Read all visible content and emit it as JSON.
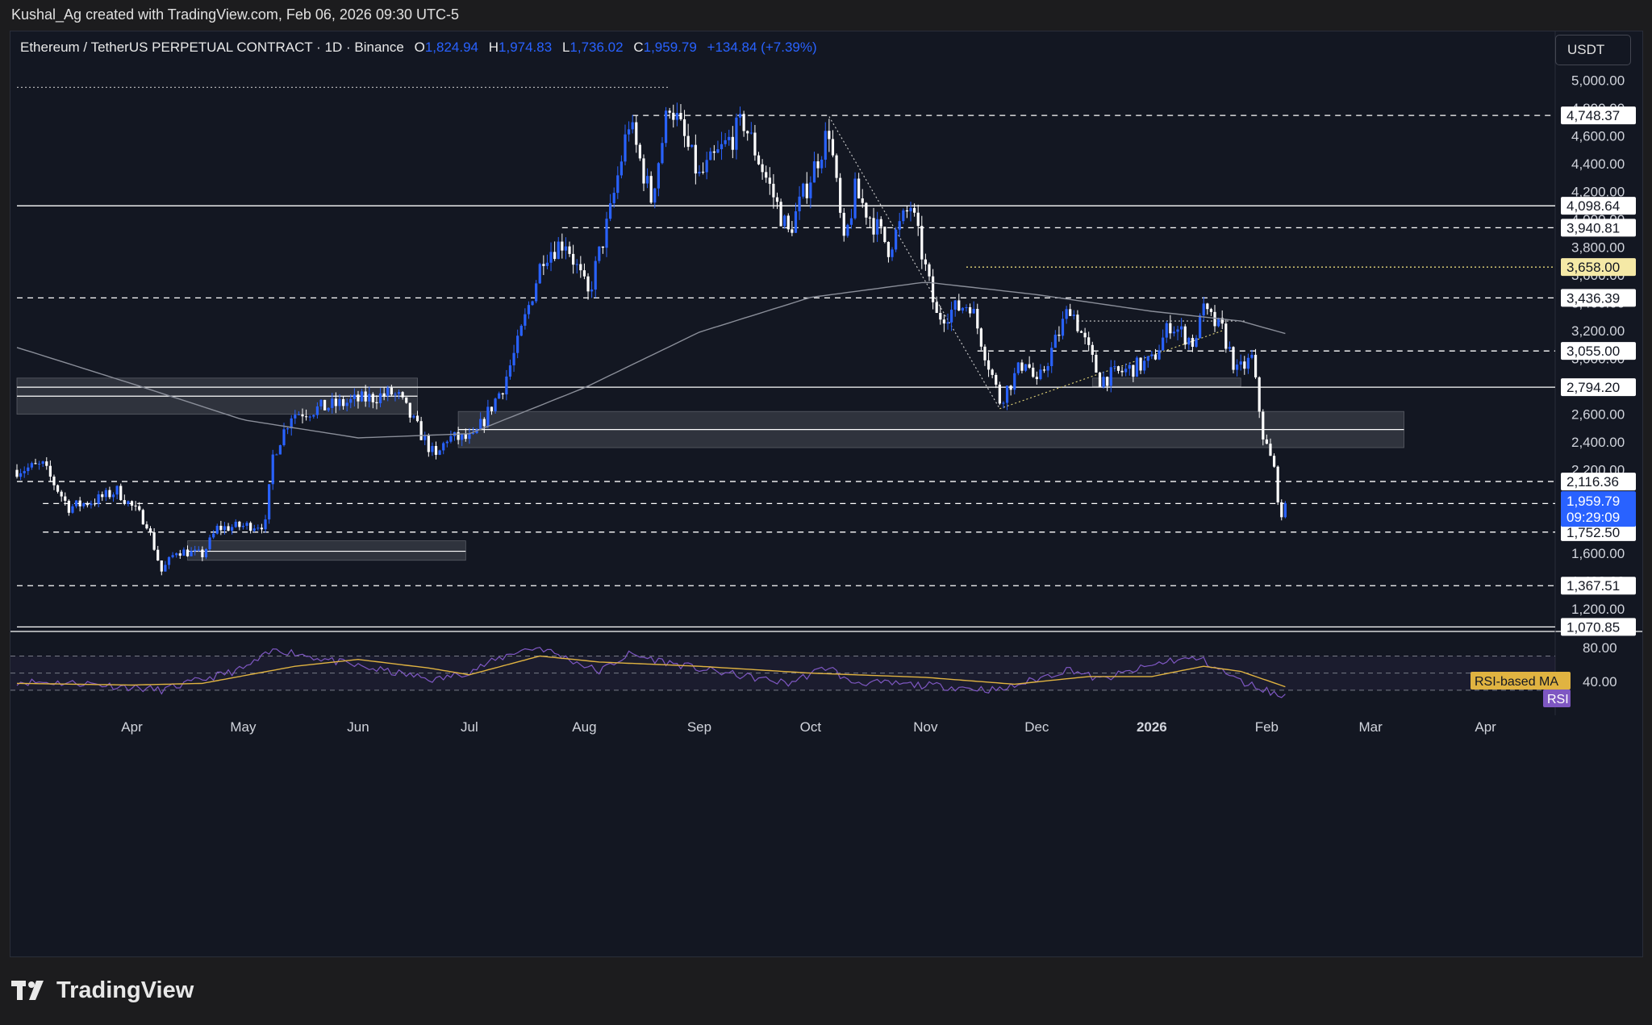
{
  "header": {
    "attribution": "Kushal_Ag created with TradingView.com, Feb 06, 2026 09:30 UTC-5"
  },
  "legend": {
    "symbol": "Ethereum / TetherUS PERPETUAL CONTRACT · 1D · Binance",
    "open_label": "O",
    "open": "1,824.94",
    "high_label": "H",
    "high": "1,974.83",
    "low_label": "L",
    "low": "1,736.02",
    "close_label": "C",
    "close": "1,959.79",
    "change": "+134.84 (+7.39%)"
  },
  "currency": "USDT",
  "branding": {
    "logo_text": "TradingView"
  },
  "colors": {
    "bg": "#131722",
    "candle_up": "#2962ff",
    "candle_down": "#ffffff",
    "ma": "#8a8e99",
    "rsi": "#7e57c2",
    "rsi_ma": "#e0b341",
    "zone": "#3a3d47",
    "highlight": "#f5e9a6"
  },
  "chart_data": [
    {
      "type": "candlestick",
      "symbol": "ETHUSDT.P",
      "timeframe": "1D",
      "ylim": [
        1050,
        5120
      ],
      "x_range": [
        "2025-03-01",
        "2026-04-15"
      ],
      "x_ticks": [
        {
          "label": "Apr",
          "date": "2025-04-01"
        },
        {
          "label": "May",
          "date": "2025-05-01"
        },
        {
          "label": "Jun",
          "date": "2025-06-01"
        },
        {
          "label": "Jul",
          "date": "2025-07-01"
        },
        {
          "label": "Aug",
          "date": "2025-08-01"
        },
        {
          "label": "Sep",
          "date": "2025-09-01"
        },
        {
          "label": "Oct",
          "date": "2025-10-01"
        },
        {
          "label": "Nov",
          "date": "2025-11-01"
        },
        {
          "label": "Dec",
          "date": "2025-12-01"
        },
        {
          "label": "2026",
          "date": "2026-01-01",
          "bold": true
        },
        {
          "label": "Feb",
          "date": "2026-02-01"
        },
        {
          "label": "Mar",
          "date": "2026-03-01"
        },
        {
          "label": "Apr",
          "date": "2026-04-01"
        }
      ],
      "y_ticks": [
        "1,200.00",
        "1,400.00",
        "1,600.00",
        "1,800.00",
        "2,000.00",
        "2,200.00",
        "2,400.00",
        "2,600.00",
        "2,800.00",
        "3,000.00",
        "3,200.00",
        "3,400.00",
        "3,600.00",
        "3,800.00",
        "4,000.00",
        "4,200.00",
        "4,400.00",
        "4,600.00",
        "4,800.00",
        "5,000.00"
      ],
      "y_tick_values": [
        1200,
        1400,
        1600,
        1800,
        2000,
        2200,
        2400,
        2600,
        2800,
        3000,
        3200,
        3400,
        3600,
        3800,
        4000,
        4200,
        4400,
        4600,
        4800,
        5000
      ],
      "keypoints": [
        {
          "date": "2025-03-01",
          "price": 2200
        },
        {
          "date": "2025-03-08",
          "price": 2230
        },
        {
          "date": "2025-03-15",
          "price": 1930
        },
        {
          "date": "2025-03-22",
          "price": 1980
        },
        {
          "date": "2025-03-28",
          "price": 2050
        },
        {
          "date": "2025-04-05",
          "price": 1820
        },
        {
          "date": "2025-04-09",
          "price": 1470
        },
        {
          "date": "2025-04-13",
          "price": 1620
        },
        {
          "date": "2025-04-20",
          "price": 1590
        },
        {
          "date": "2025-04-24",
          "price": 1780
        },
        {
          "date": "2025-05-07",
          "price": 1810
        },
        {
          "date": "2025-05-09",
          "price": 2300
        },
        {
          "date": "2025-05-14",
          "price": 2600
        },
        {
          "date": "2025-06-10",
          "price": 2750
        },
        {
          "date": "2025-06-12",
          "price": 2720
        },
        {
          "date": "2025-06-22",
          "price": 2280
        },
        {
          "date": "2025-06-25",
          "price": 2430
        },
        {
          "date": "2025-07-02",
          "price": 2420
        },
        {
          "date": "2025-07-10",
          "price": 2800
        },
        {
          "date": "2025-07-14",
          "price": 3100
        },
        {
          "date": "2025-07-21",
          "price": 3750
        },
        {
          "date": "2025-07-27",
          "price": 3850
        },
        {
          "date": "2025-08-02",
          "price": 3450
        },
        {
          "date": "2025-08-08",
          "price": 4050
        },
        {
          "date": "2025-08-13",
          "price": 4700
        },
        {
          "date": "2025-08-19",
          "price": 4150
        },
        {
          "date": "2025-08-24",
          "price": 4850
        },
        {
          "date": "2025-09-01",
          "price": 4300
        },
        {
          "date": "2025-09-13",
          "price": 4700
        },
        {
          "date": "2025-09-25",
          "price": 3900
        },
        {
          "date": "2025-10-06",
          "price": 4650
        },
        {
          "date": "2025-10-10",
          "price": 3800
        },
        {
          "date": "2025-10-13",
          "price": 4200
        },
        {
          "date": "2025-10-22",
          "price": 3800
        },
        {
          "date": "2025-10-28",
          "price": 4100
        },
        {
          "date": "2025-11-04",
          "price": 3300
        },
        {
          "date": "2025-11-13",
          "price": 3400
        },
        {
          "date": "2025-11-21",
          "price": 2700
        },
        {
          "date": "2025-11-28",
          "price": 3000
        },
        {
          "date": "2025-12-01",
          "price": 2800
        },
        {
          "date": "2025-12-10",
          "price": 3380
        },
        {
          "date": "2025-12-18",
          "price": 2850
        },
        {
          "date": "2026-01-01",
          "price": 2980
        },
        {
          "date": "2026-01-06",
          "price": 3250
        },
        {
          "date": "2026-01-13",
          "price": 3100
        },
        {
          "date": "2026-01-14",
          "price": 3360
        },
        {
          "date": "2026-01-20",
          "price": 3200
        },
        {
          "date": "2026-01-24",
          "price": 2900
        },
        {
          "date": "2026-01-28",
          "price": 3000
        },
        {
          "date": "2026-01-31",
          "price": 2450
        },
        {
          "date": "2026-02-03",
          "price": 2200
        },
        {
          "date": "2026-02-05",
          "price": 1820
        },
        {
          "date": "2026-02-06",
          "price": 1959.79
        }
      ],
      "moving_average": [
        {
          "date": "2025-03-01",
          "price": 3080
        },
        {
          "date": "2025-04-01",
          "price": 2820
        },
        {
          "date": "2025-05-01",
          "price": 2560
        },
        {
          "date": "2025-06-01",
          "price": 2430
        },
        {
          "date": "2025-07-01",
          "price": 2460
        },
        {
          "date": "2025-08-01",
          "price": 2790
        },
        {
          "date": "2025-09-01",
          "price": 3190
        },
        {
          "date": "2025-10-01",
          "price": 3440
        },
        {
          "date": "2025-11-01",
          "price": 3550
        },
        {
          "date": "2025-12-01",
          "price": 3460
        },
        {
          "date": "2026-01-01",
          "price": 3340
        },
        {
          "date": "2026-01-25",
          "price": 3270
        },
        {
          "date": "2026-02-06",
          "price": 3180
        }
      ],
      "horizontal_levels": [
        {
          "price": 4748.37,
          "label": "4,748.37",
          "style": "dashed",
          "from": "2025-08-14"
        },
        {
          "price": 4098.64,
          "label": "4,098.64",
          "style": "solid",
          "from": "2025-03-01"
        },
        {
          "price": 3940.81,
          "label": "3,940.81",
          "style": "dashed",
          "from": "2025-07-26"
        },
        {
          "price": 3658.0,
          "label": "3,658.00",
          "style": "dotted",
          "from": "2025-11-12",
          "highlight": true
        },
        {
          "price": 3436.39,
          "label": "3,436.39",
          "style": "dashed",
          "from": "2025-03-01"
        },
        {
          "price": 3055.0,
          "label": "3,055.00",
          "style": "dashed",
          "from": "2025-11-15"
        },
        {
          "price": 2794.2,
          "label": "2,794.20",
          "style": "solid",
          "from": "2025-03-01"
        },
        {
          "price": 2116.36,
          "label": "2,116.36",
          "style": "dashed",
          "from": "2025-03-01"
        },
        {
          "price": 1957.97,
          "label": "1,957.97",
          "style": "dashed",
          "from": "2025-03-08"
        },
        {
          "price": 1752.5,
          "label": "1,752.50",
          "style": "dashed",
          "from": "2025-03-08"
        },
        {
          "price": 1367.51,
          "label": "1,367.51",
          "style": "dashed",
          "from": "2025-03-01"
        },
        {
          "price": 1070.85,
          "label": "1,070.85",
          "style": "solid",
          "from": "2025-03-01"
        }
      ],
      "current_price": {
        "label": "1,959.79",
        "countdown": "09:29:09",
        "price": 1959.79
      },
      "all_time_high_line": {
        "price": 4950,
        "from": "2025-03-01",
        "to": "2025-08-24"
      },
      "zones": [
        {
          "from": "2025-03-01",
          "to": "2025-06-17",
          "top": 2860,
          "bottom": 2600
        },
        {
          "from": "2025-06-28",
          "to": "2026-03-10",
          "top": 2620,
          "bottom": 2360
        },
        {
          "from": "2025-04-16",
          "to": "2025-06-30",
          "top": 1690,
          "bottom": 1550
        },
        {
          "from": "2025-12-16",
          "to": "2026-01-25",
          "top": 2860,
          "bottom": 2800
        }
      ]
    },
    {
      "type": "line",
      "name": "RSI",
      "ylim": [
        10,
        95
      ],
      "y_ticks": [
        "80.00",
        "40.00"
      ],
      "y_tick_values": [
        80,
        40
      ],
      "bands": [
        70,
        50,
        30
      ],
      "series": [
        {
          "name": "RSI",
          "points": [
            {
              "date": "2025-03-01",
              "value": 40
            },
            {
              "date": "2025-03-20",
              "value": 38
            },
            {
              "date": "2025-04-09",
              "value": 30
            },
            {
              "date": "2025-05-01",
              "value": 55
            },
            {
              "date": "2025-05-10",
              "value": 78
            },
            {
              "date": "2025-06-01",
              "value": 58
            },
            {
              "date": "2025-06-22",
              "value": 42
            },
            {
              "date": "2025-07-01",
              "value": 52
            },
            {
              "date": "2025-07-14",
              "value": 76
            },
            {
              "date": "2025-07-20",
              "value": 80
            },
            {
              "date": "2025-08-05",
              "value": 52
            },
            {
              "date": "2025-08-13",
              "value": 72
            },
            {
              "date": "2025-09-01",
              "value": 55
            },
            {
              "date": "2025-09-25",
              "value": 38
            },
            {
              "date": "2025-10-06",
              "value": 58
            },
            {
              "date": "2025-10-11",
              "value": 40
            },
            {
              "date": "2025-11-04",
              "value": 35
            },
            {
              "date": "2025-11-21",
              "value": 30
            },
            {
              "date": "2025-12-10",
              "value": 55
            },
            {
              "date": "2025-12-18",
              "value": 42
            },
            {
              "date": "2026-01-06",
              "value": 65
            },
            {
              "date": "2026-01-14",
              "value": 67
            },
            {
              "date": "2026-01-25",
              "value": 40
            },
            {
              "date": "2026-02-01",
              "value": 30
            },
            {
              "date": "2026-02-05",
              "value": 22
            },
            {
              "date": "2026-02-06",
              "value": 24
            }
          ]
        },
        {
          "name": "RSI-based MA",
          "points": [
            {
              "date": "2025-03-01",
              "value": 38
            },
            {
              "date": "2025-04-01",
              "value": 36
            },
            {
              "date": "2025-04-20",
              "value": 38
            },
            {
              "date": "2025-05-15",
              "value": 58
            },
            {
              "date": "2025-06-01",
              "value": 66
            },
            {
              "date": "2025-06-20",
              "value": 56
            },
            {
              "date": "2025-07-01",
              "value": 48
            },
            {
              "date": "2025-07-20",
              "value": 70
            },
            {
              "date": "2025-08-05",
              "value": 63
            },
            {
              "date": "2025-09-01",
              "value": 58
            },
            {
              "date": "2025-10-01",
              "value": 50
            },
            {
              "date": "2025-11-01",
              "value": 45
            },
            {
              "date": "2025-11-25",
              "value": 37
            },
            {
              "date": "2025-12-15",
              "value": 46
            },
            {
              "date": "2026-01-01",
              "value": 46
            },
            {
              "date": "2026-01-15",
              "value": 58
            },
            {
              "date": "2026-01-25",
              "value": 52
            },
            {
              "date": "2026-02-06",
              "value": 34
            }
          ]
        }
      ],
      "legend": [
        {
          "label": "RSI-based MA",
          "color": "#e0b341"
        },
        {
          "label": "RSI",
          "color": "#7e57c2"
        }
      ]
    }
  ]
}
